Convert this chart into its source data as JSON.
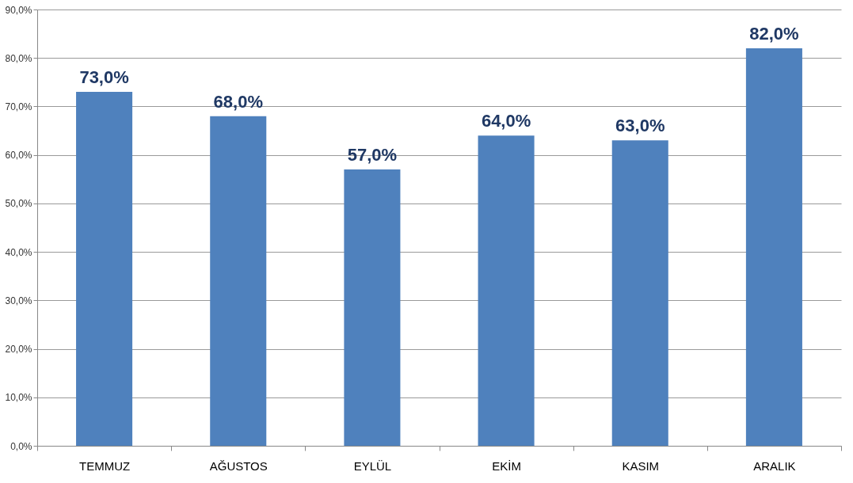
{
  "chart_data": {
    "type": "bar",
    "categories": [
      "TEMMUZ",
      "AĞUSTOS",
      "EYLÜL",
      "EKİM",
      "KASIM",
      "ARALIK"
    ],
    "values": [
      73,
      68,
      57,
      64,
      63,
      82
    ],
    "value_labels": [
      "73,0%",
      "68,0%",
      "57,0%",
      "64,0%",
      "63,0%",
      "82,0%"
    ],
    "color": "#4f81bd",
    "ylim": [
      0,
      90
    ],
    "yticks": [
      {
        "value": 0,
        "label": "0,0%"
      },
      {
        "value": 10,
        "label": "10,0%"
      },
      {
        "value": 20,
        "label": "20,0%"
      },
      {
        "value": 30,
        "label": "30,0%"
      },
      {
        "value": 40,
        "label": "40,0%"
      },
      {
        "value": 50,
        "label": "50,0%"
      },
      {
        "value": 60,
        "label": "60,0%"
      },
      {
        "value": 70,
        "label": "70,0%"
      },
      {
        "value": 80,
        "label": "80,0%"
      },
      {
        "value": 90,
        "label": "90,0%"
      }
    ],
    "grid": "y"
  }
}
